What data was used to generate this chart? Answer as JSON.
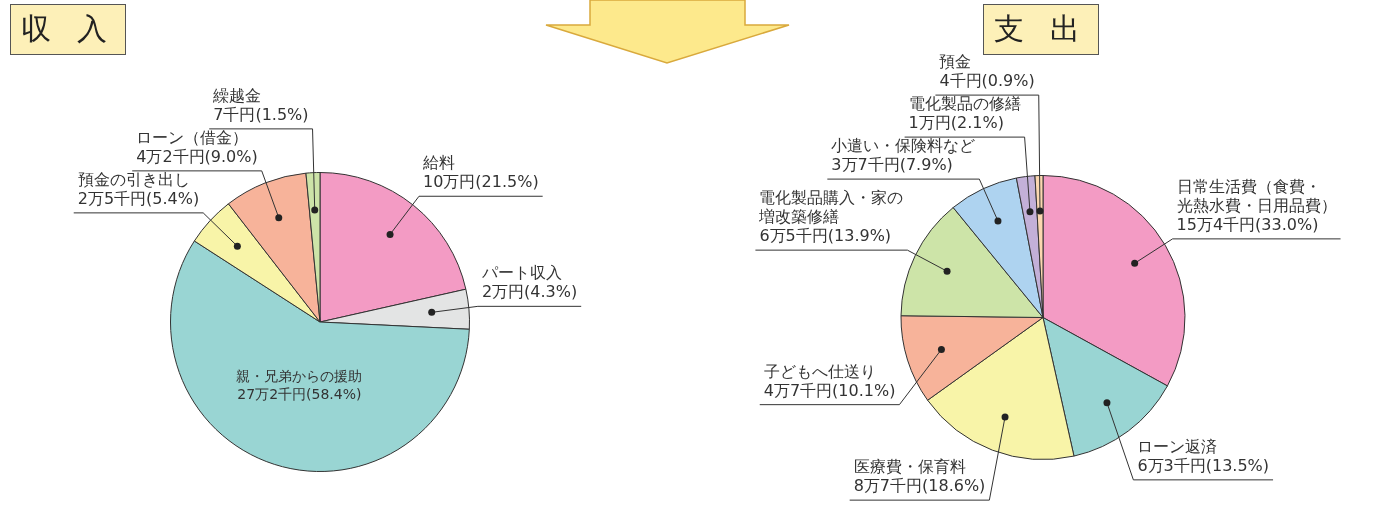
{
  "chart_data": [
    {
      "type": "pie",
      "title": "収 入",
      "categories": [
        "給料",
        "パート収入",
        "親・兄弟からの援助",
        "預金の引き出し",
        "ローン（借金）",
        "繰越金"
      ],
      "values": [
        21.5,
        4.3,
        58.4,
        5.4,
        9.0,
        1.5
      ],
      "colors": [
        "#f39bc4",
        "#e3e4e4",
        "#99d5d3",
        "#f8f4a8",
        "#f7b39a",
        "#cde4a8"
      ],
      "value_labels": [
        "10万円(21.5%)",
        "2万円(4.3%)",
        "27万2千円(58.4%)",
        "2万5千円(5.4%)",
        "4万2千円(9.0%)",
        "7千円(1.5%)"
      ]
    },
    {
      "type": "pie",
      "title": "支 出",
      "categories": [
        "日常生活費（食費・光熱水費・日用品費）",
        "ローン返済",
        "医療費・保育料",
        "子どもへ仕送り",
        "電化製品購入・家の増改築修繕",
        "小遣い・保険料など",
        "電化製品の修繕",
        "預金"
      ],
      "values": [
        33.0,
        13.5,
        18.6,
        10.1,
        13.9,
        7.9,
        2.1,
        0.9
      ],
      "colors": [
        "#f39bc4",
        "#99d5d3",
        "#f8f4a8",
        "#f7b39a",
        "#cde4a8",
        "#aed3f0",
        "#c3b0d8",
        "#fbd7b0"
      ],
      "value_labels": [
        "15万4千円(33.0%)",
        "6万3千円(13.5%)",
        "8万7千円(18.6%)",
        "4万7千円(10.1%)",
        "6万5千円(13.9%)",
        "3万7千円(7.9%)",
        "1万円(2.1%)",
        "4千円(0.9%)"
      ]
    }
  ]
}
